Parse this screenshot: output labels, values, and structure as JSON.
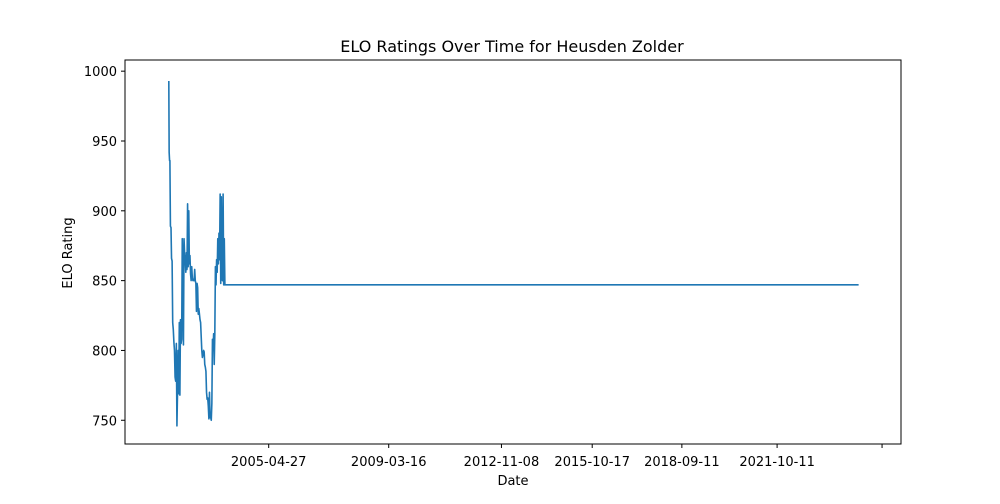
{
  "chart_data": {
    "type": "line",
    "title": "ELO Ratings Over Time for Heusden Zolder",
    "xlabel": "Date",
    "ylabel": "ELO Rating",
    "x_ticks": [
      "2005-04-27",
      "2009-03-16",
      "2012-11-08",
      "2015-10-17",
      "2018-09-11",
      "2021-10-11",
      ""
    ],
    "y_ticks": [
      750,
      800,
      850,
      900,
      950,
      1000
    ],
    "ylim": [
      733,
      1008
    ],
    "grid": false,
    "line_color": "#1f77b4",
    "series": [
      {
        "x": [
          "2002-02-01",
          "2002-02-05",
          "2002-02-10",
          "2002-02-14",
          "2002-02-20",
          "2002-02-27",
          "2002-03-05",
          "2002-03-12",
          "2002-03-19",
          "2002-03-26",
          "2002-04-02",
          "2002-04-09",
          "2002-04-16",
          "2002-04-23",
          "2002-05-01",
          "2002-05-08",
          "2002-05-15",
          "2002-05-22",
          "2002-05-29",
          "2002-06-05",
          "2002-06-12",
          "2002-06-19",
          "2002-06-26",
          "2002-07-03",
          "2002-07-10",
          "2002-07-17",
          "2002-07-24",
          "2002-07-31",
          "2002-08-07",
          "2002-08-14",
          "2002-08-21",
          "2002-08-28",
          "2002-09-04",
          "2002-09-11",
          "2002-09-18",
          "2002-09-25",
          "2002-10-02",
          "2002-10-09",
          "2002-10-16",
          "2002-10-23",
          "2002-10-30",
          "2002-11-06",
          "2002-11-13",
          "2002-11-20",
          "2002-11-27",
          "2002-12-04",
          "2002-12-11",
          "2002-12-18",
          "2002-12-25",
          "2003-01-01",
          "2003-01-08",
          "2003-01-15",
          "2003-01-22",
          "2003-01-29",
          "2003-02-05",
          "2003-02-12",
          "2003-02-19",
          "2003-02-26",
          "2003-03-05",
          "2003-03-12",
          "2003-03-19",
          "2003-03-26",
          "2003-04-02",
          "2003-04-09",
          "2003-04-16",
          "2003-04-23",
          "2003-04-30",
          "2003-05-07",
          "2003-05-14",
          "2003-05-21",
          "2003-05-28",
          "2003-06-04",
          "2003-06-11",
          "2003-06-18",
          "2003-06-25",
          "2003-07-02",
          "2003-07-09",
          "2003-07-16",
          "2003-07-23",
          "2003-07-30",
          "2003-08-06",
          "2003-08-13",
          "2003-08-20",
          "2003-08-27",
          "2003-09-03",
          "2003-09-10",
          "2003-09-17",
          "2003-09-24",
          "2003-10-01",
          "2003-10-08",
          "2003-10-15",
          "2003-10-22",
          "2003-10-29",
          "2003-11-05",
          "2003-11-12",
          "2003-11-19",
          "2003-11-26",
          "2003-12-03",
          "2003-12-10",
          "2003-12-17",
          "2003-12-24",
          "2003-12-31",
          "2004-01-07",
          "2004-01-14",
          "2004-01-21",
          "2004-01-28",
          "2004-02-04",
          "2004-02-11",
          "2004-02-18",
          "2004-02-25",
          "2004-03-03",
          "2004-03-10",
          "2004-03-17",
          "2004-03-24",
          "2004-03-31",
          "2004-04-07",
          "2004-04-14",
          "2004-04-21",
          "2004-04-28",
          "2004-05-05",
          "2004-05-12",
          "2004-05-19",
          "2004-05-26",
          "2004-06-02",
          "2004-06-09",
          "2004-06-16",
          "2004-06-23",
          "2004-06-30",
          "2004-07-07",
          "2004-07-14",
          "2024-06-01"
        ],
        "y": [
          993,
          942,
          936,
          936,
          889,
          888,
          866,
          864,
          820,
          815,
          806,
          800,
          781,
          778,
          805,
          746,
          770,
          800,
          769,
          820,
          768,
          822,
          805,
          808,
          880,
          860,
          804,
          880,
          869,
          866,
          856,
          870,
          858,
          905,
          860,
          900,
          862,
          868,
          855,
          850,
          860,
          852,
          850,
          850,
          850,
          858,
          850,
          848,
          828,
          848,
          845,
          826,
          830,
          826,
          822,
          820,
          810,
          800,
          795,
          797,
          800,
          799,
          790,
          788,
          785,
          770,
          765,
          766,
          760,
          751,
          770,
          752,
          752,
          750,
          762,
          808,
          800,
          812,
          790,
          812,
          860,
          847,
          865,
          856,
          880,
          862,
          884,
          865,
          912,
          848,
          910,
          851,
          850,
          912,
          847,
          880,
          847,
          847,
          847,
          847,
          847,
          847,
          847,
          847,
          847,
          847,
          847,
          847,
          847,
          847,
          847,
          847,
          847,
          847,
          847,
          847,
          847,
          847,
          847,
          847,
          847,
          847,
          847,
          847,
          847,
          847,
          847,
          847,
          847,
          847,
          847
        ]
      }
    ]
  }
}
